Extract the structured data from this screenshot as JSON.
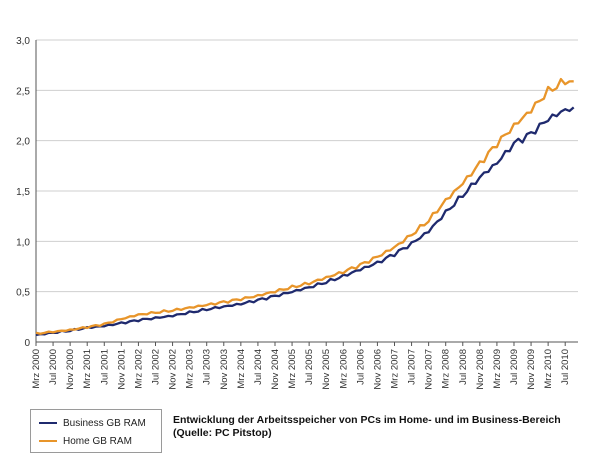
{
  "chart_data": {
    "type": "line",
    "title": "",
    "xlabel": "",
    "ylabel": "",
    "ylim": [
      0,
      3.0
    ],
    "yticks": [
      "0",
      "0,5",
      "1,0",
      "1,5",
      "2,0",
      "2,5",
      "3,0"
    ],
    "grid": "horizontal",
    "legend_placement": "bottom-left",
    "x_tick_labels": [
      "Mrz 2000",
      "Jul 2000",
      "Nov 2000",
      "Mrz 2001",
      "Jul 2001",
      "Nov 2001",
      "Mrz 2002",
      "Jul 2002",
      "Nov 2002",
      "Mrz 2003",
      "Jul 2003",
      "Nov 2003",
      "Mrz 2004",
      "Jul 2004",
      "Nov 2004",
      "Mrz 2005",
      "Jul 2005",
      "Nov 2005",
      "Mrz 2006",
      "Jul 2006",
      "Nov 2006",
      "Mrz 2007",
      "Jul 2007",
      "Nov 2007",
      "Mrz 2008",
      "Jul 2008",
      "Nov 2008",
      "Mrz 2009",
      "Jul 2009",
      "Nov 2009",
      "Mrz 2010",
      "Jul 2010"
    ],
    "series": [
      {
        "name": "Business GB RAM",
        "color": "#1f2a6e",
        "points": [
          [
            "Mrz 2000",
            0.07
          ],
          [
            "Jul 2000",
            0.09
          ],
          [
            "Nov 2000",
            0.11
          ],
          [
            "Mrz 2001",
            0.14
          ],
          [
            "Jul 2001",
            0.16
          ],
          [
            "Nov 2001",
            0.19
          ],
          [
            "Mrz 2002",
            0.22
          ],
          [
            "Jul 2002",
            0.24
          ],
          [
            "Nov 2002",
            0.26
          ],
          [
            "Mrz 2003",
            0.29
          ],
          [
            "Jul 2003",
            0.32
          ],
          [
            "Nov 2003",
            0.35
          ],
          [
            "Mrz 2004",
            0.38
          ],
          [
            "Jul 2004",
            0.42
          ],
          [
            "Nov 2004",
            0.46
          ],
          [
            "Mrz 2005",
            0.5
          ],
          [
            "Jul 2005",
            0.54
          ],
          [
            "Nov 2005",
            0.59
          ],
          [
            "Mrz 2006",
            0.65
          ],
          [
            "Jul 2006",
            0.72
          ],
          [
            "Nov 2006",
            0.79
          ],
          [
            "Mrz 2007",
            0.88
          ],
          [
            "Jul 2007",
            0.98
          ],
          [
            "Nov 2007",
            1.1
          ],
          [
            "Mrz 2008",
            1.28
          ],
          [
            "Jul 2008",
            1.45
          ],
          [
            "Nov 2008",
            1.63
          ],
          [
            "Mrz 2009",
            1.78
          ],
          [
            "Jul 2009",
            1.98
          ],
          [
            "Nov 2009",
            2.08
          ],
          [
            "Mrz 2010",
            2.22
          ],
          [
            "Jul 2010",
            2.3
          ],
          [
            "Sep 2010",
            2.33
          ]
        ]
      },
      {
        "name": "Home GB RAM",
        "color": "#e8952a",
        "points": [
          [
            "Mrz 2000",
            0.08
          ],
          [
            "Jul 2000",
            0.1
          ],
          [
            "Nov 2000",
            0.12
          ],
          [
            "Mrz 2001",
            0.15
          ],
          [
            "Jul 2001",
            0.18
          ],
          [
            "Nov 2001",
            0.23
          ],
          [
            "Mrz 2002",
            0.27
          ],
          [
            "Jul 2002",
            0.29
          ],
          [
            "Nov 2002",
            0.31
          ],
          [
            "Mrz 2003",
            0.34
          ],
          [
            "Jul 2003",
            0.37
          ],
          [
            "Nov 2003",
            0.4
          ],
          [
            "Mrz 2004",
            0.43
          ],
          [
            "Jul 2004",
            0.46
          ],
          [
            "Nov 2004",
            0.5
          ],
          [
            "Mrz 2005",
            0.54
          ],
          [
            "Jul 2005",
            0.58
          ],
          [
            "Nov 2005",
            0.64
          ],
          [
            "Mrz 2006",
            0.7
          ],
          [
            "Jul 2006",
            0.77
          ],
          [
            "Nov 2006",
            0.85
          ],
          [
            "Mrz 2007",
            0.94
          ],
          [
            "Jul 2007",
            1.06
          ],
          [
            "Nov 2007",
            1.2
          ],
          [
            "Mrz 2008",
            1.4
          ],
          [
            "Jul 2008",
            1.58
          ],
          [
            "Nov 2008",
            1.78
          ],
          [
            "Mrz 2009",
            1.98
          ],
          [
            "Jul 2009",
            2.15
          ],
          [
            "Nov 2009",
            2.3
          ],
          [
            "Mrz 2010",
            2.48
          ],
          [
            "Jul 2010",
            2.58
          ],
          [
            "Sep 2010",
            2.59
          ]
        ]
      }
    ]
  },
  "legend": {
    "business_label": "Business GB RAM",
    "home_label": "Home GB RAM"
  },
  "caption": {
    "line1": "Entwicklung der Arbeitsspeicher von PCs im Home- und im Business-Bereich",
    "line2": "(Quelle: PC Pitstop)"
  }
}
